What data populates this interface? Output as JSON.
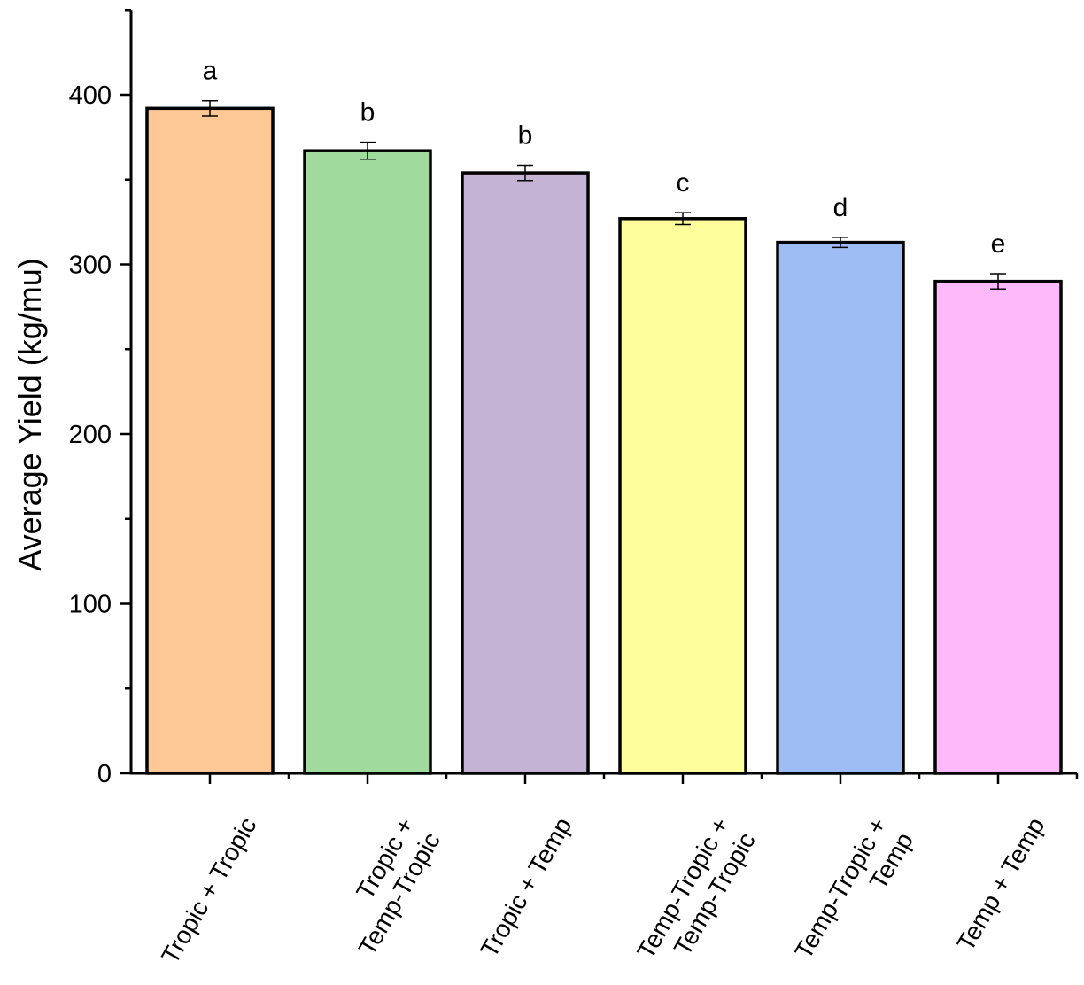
{
  "chart_data": {
    "type": "bar",
    "ylabel": "Average Yield (kg/mu)",
    "xlabel": "",
    "title": "",
    "ylim": [
      0,
      450
    ],
    "y_major_ticks": [
      0,
      100,
      200,
      300,
      400
    ],
    "y_minor_step": 50,
    "grid": false,
    "legend": "none",
    "categories": [
      [
        "Tropic + Tropic"
      ],
      [
        "Tropic +",
        "Temp-Tropic"
      ],
      [
        "Tropic + Temp"
      ],
      [
        "Temp-Tropic +",
        "Temp-Tropic"
      ],
      [
        "Temp-Tropic +",
        "Temp"
      ],
      [
        "Temp + Temp"
      ]
    ],
    "values": [
      392,
      367,
      354,
      327,
      313,
      290
    ],
    "errors": [
      4.5,
      5,
      4.5,
      3.5,
      3,
      4.5
    ],
    "significance_letters": [
      "a",
      "b",
      "b",
      "c",
      "d",
      "e"
    ],
    "colors": [
      "#FDC896",
      "#A0DA9C",
      "#C5B3D6",
      "#FEFE9D",
      "#9EBCF4",
      "#FDB9F9"
    ]
  }
}
